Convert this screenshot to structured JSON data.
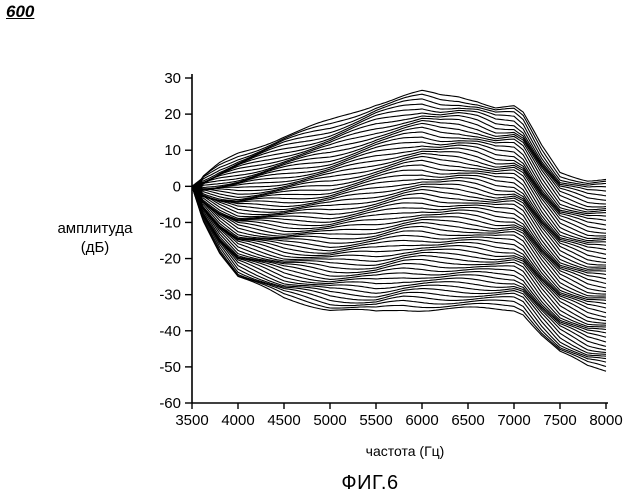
{
  "figure_number": "600",
  "caption": "ФИГ.6",
  "chart_data": {
    "type": "line",
    "title": "",
    "xlabel": "частота (Гц)",
    "ylabel_line1": "амплитуда",
    "ylabel_line2": "(дБ)",
    "xlim": [
      3500,
      8000
    ],
    "ylim": [
      -60,
      30
    ],
    "x_ticks": [
      3500,
      4000,
      4500,
      5000,
      5500,
      6000,
      6500,
      7000,
      7500,
      8000
    ],
    "y_ticks": [
      30,
      20,
      10,
      0,
      -10,
      -20,
      -30,
      -40,
      -50,
      -60
    ],
    "grid": false,
    "legend": "none",
    "line_color": "#000000",
    "num_curves": 60,
    "envelope": {
      "x": [
        3500,
        3600,
        3800,
        4000,
        4500,
        5000,
        5500,
        5800,
        6000,
        6200,
        6400,
        6600,
        6800,
        7000,
        7100,
        7300,
        7500,
        7800,
        8000
      ],
      "top": [
        0,
        2,
        6,
        9,
        14,
        18,
        23,
        25,
        26,
        25,
        25,
        24,
        22,
        22,
        20,
        11,
        4,
        2,
        2
      ],
      "bottom": [
        0,
        -8,
        -18,
        -25,
        -31,
        -34,
        -35,
        -34,
        -34,
        -34,
        -34,
        -34,
        -34,
        -34,
        -35,
        -41,
        -46,
        -50,
        -51
      ]
    }
  }
}
